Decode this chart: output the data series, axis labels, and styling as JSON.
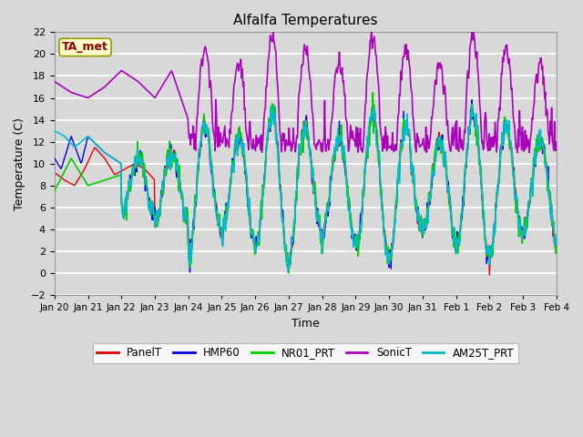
{
  "title": "Alfalfa Temperatures",
  "xlabel": "Time",
  "ylabel": "Temperature (C)",
  "ylim": [
    -2,
    22
  ],
  "yticks": [
    -2,
    0,
    2,
    4,
    6,
    8,
    10,
    12,
    14,
    16,
    18,
    20,
    22
  ],
  "bg_color": "#d8d8d8",
  "plot_bg_color": "#d8d8d8",
  "grid_color": "#ffffff",
  "annotation_text": "TA_met",
  "annotation_color": "#8b0000",
  "annotation_bg": "#ffffcc",
  "series": {
    "PanelT": {
      "color": "#dd0000",
      "lw": 1.0
    },
    "HMP60": {
      "color": "#0000dd",
      "lw": 1.0
    },
    "NR01_PRT": {
      "color": "#00cc00",
      "lw": 1.2
    },
    "SonicT": {
      "color": "#aa00bb",
      "lw": 1.2
    },
    "AM25T_PRT": {
      "color": "#00bbcc",
      "lw": 1.2
    }
  },
  "tick_labels": [
    "Jan 20",
    "Jan 21",
    "Jan 22",
    "Jan 23",
    "Jan 24",
    "Jan 25",
    "Jan 26",
    "Jan 27",
    "Jan 28",
    "Jan 29",
    "Jan 30",
    "Jan 31",
    "Feb 1",
    "Feb 2",
    "Feb 3",
    "Feb 4"
  ]
}
